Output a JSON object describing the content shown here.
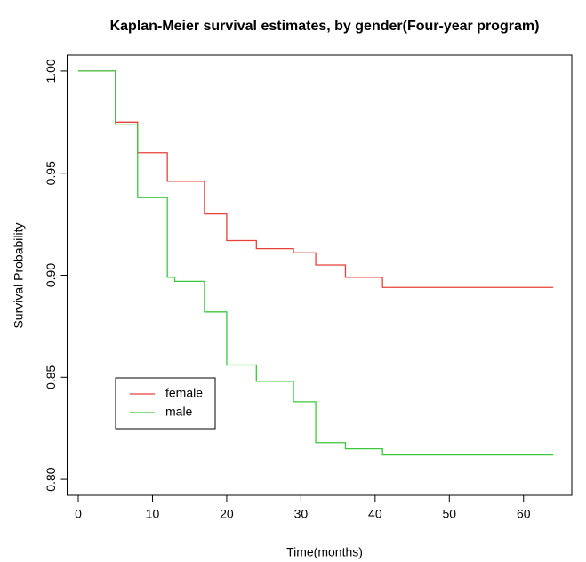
{
  "chart_data": {
    "type": "step",
    "title": "Kaplan-Meier survival estimates, by gender(Four-year program)",
    "x_label": "Time(months)",
    "y_label": "Survival Probability",
    "xlim": [
      -1.5,
      66.5
    ],
    "xticks": [
      0,
      10,
      20,
      30,
      40,
      50,
      60
    ],
    "ylim": [
      0.7922,
      1.0078
    ],
    "yticks": [
      {
        "value": 0.8,
        "label": "0.80"
      },
      {
        "value": 0.85,
        "label": "0.85"
      },
      {
        "value": 0.9,
        "label": "0.90"
      },
      {
        "value": 0.95,
        "label": "0.95"
      },
      {
        "value": 1.0,
        "label": "1.00"
      }
    ],
    "legend": "bottom-left",
    "series": [
      {
        "name": "female",
        "color": "#e8413a",
        "x": [
          0,
          5,
          8,
          12,
          17,
          20,
          24,
          29,
          32,
          36,
          41,
          64
        ],
        "values": [
          1.0,
          0.975,
          0.96,
          0.946,
          0.93,
          0.917,
          0.913,
          0.911,
          0.905,
          0.899,
          0.894,
          0.894
        ]
      },
      {
        "name": "male",
        "color": "#3cc83c",
        "x": [
          0,
          5,
          8,
          12,
          13,
          17,
          20,
          24,
          29,
          32,
          36,
          41,
          64
        ],
        "values": [
          1.0,
          0.974,
          0.938,
          0.899,
          0.897,
          0.882,
          0.856,
          0.848,
          0.838,
          0.818,
          0.815,
          0.812,
          0.812
        ]
      }
    ]
  }
}
